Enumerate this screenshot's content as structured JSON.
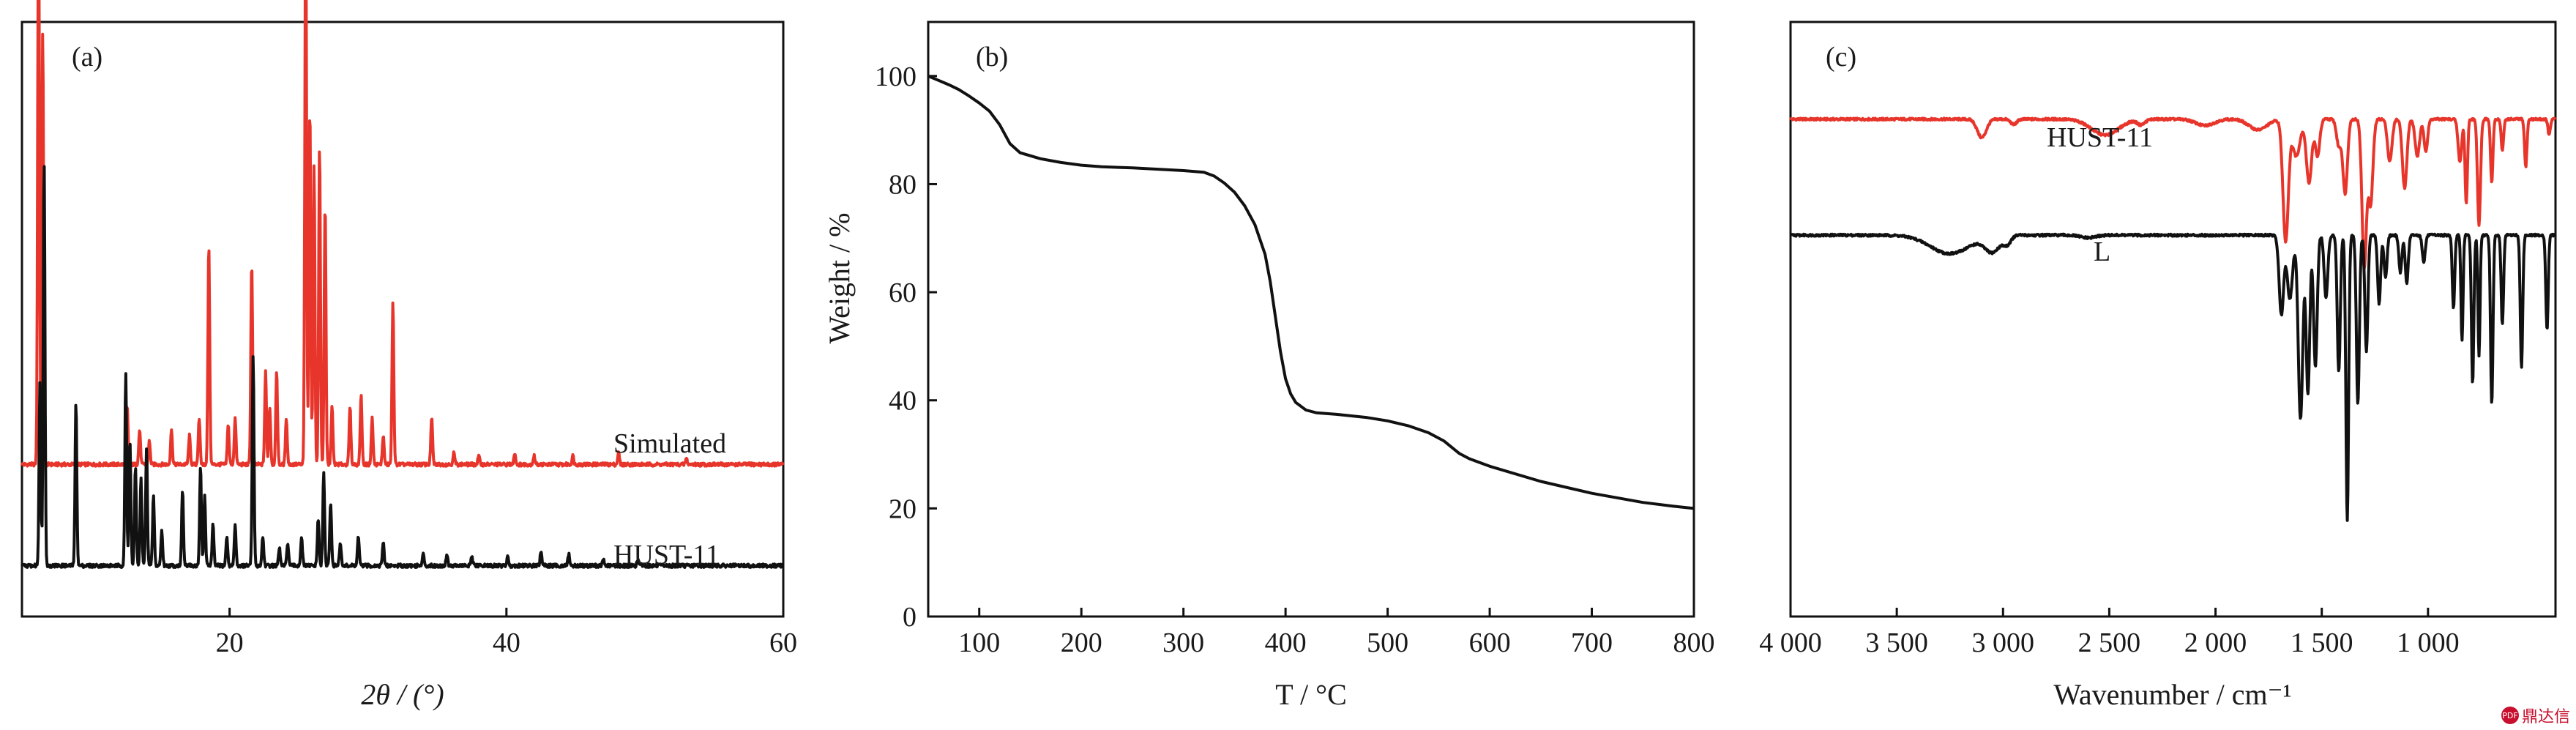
{
  "chart_data": [
    {
      "panel": "(a)",
      "type": "line",
      "xlabel": "2θ / (°)",
      "xlim": [
        5,
        60
      ],
      "xticks": [
        20,
        40,
        60
      ],
      "ylim": [
        0,
        1
      ],
      "series": [
        {
          "name": "Simulated",
          "color": "#e8352b",
          "baseline": 0.235,
          "peaks": [
            [
              6.2,
              1.0
            ],
            [
              6.5,
              0.75
            ],
            [
              12.6,
              0.1
            ],
            [
              13.5,
              0.06
            ],
            [
              14.2,
              0.04
            ],
            [
              15.8,
              0.06
            ],
            [
              17.1,
              0.05
            ],
            [
              17.8,
              0.08
            ],
            [
              18.5,
              0.38
            ],
            [
              19.9,
              0.07
            ],
            [
              20.4,
              0.08
            ],
            [
              21.6,
              0.35
            ],
            [
              22.6,
              0.16
            ],
            [
              22.9,
              0.1
            ],
            [
              23.4,
              0.16
            ],
            [
              24.1,
              0.08
            ],
            [
              25.5,
              0.97
            ],
            [
              25.8,
              0.62
            ],
            [
              26.1,
              0.52
            ],
            [
              26.5,
              0.55
            ],
            [
              26.9,
              0.45
            ],
            [
              27.4,
              0.1
            ],
            [
              28.7,
              0.1
            ],
            [
              29.5,
              0.12
            ],
            [
              30.3,
              0.08
            ],
            [
              31.1,
              0.05
            ],
            [
              31.8,
              0.28
            ],
            [
              34.6,
              0.08
            ],
            [
              36.2,
              0.02
            ],
            [
              38.0,
              0.015
            ],
            [
              40.6,
              0.02
            ],
            [
              42.0,
              0.015
            ],
            [
              44.8,
              0.015
            ],
            [
              48.1,
              0.02
            ],
            [
              53.0,
              0.01
            ]
          ]
        },
        {
          "name": "HUST-11",
          "color": "#111111",
          "baseline": 0.06,
          "peaks": [
            [
              6.3,
              0.32
            ],
            [
              6.6,
              0.7
            ],
            [
              8.9,
              0.28
            ],
            [
              12.5,
              0.33
            ],
            [
              12.8,
              0.22
            ],
            [
              13.2,
              0.17
            ],
            [
              13.6,
              0.15
            ],
            [
              14.0,
              0.2
            ],
            [
              14.5,
              0.12
            ],
            [
              15.1,
              0.06
            ],
            [
              16.6,
              0.13
            ],
            [
              17.9,
              0.17
            ],
            [
              18.2,
              0.12
            ],
            [
              18.8,
              0.07
            ],
            [
              19.8,
              0.05
            ],
            [
              20.4,
              0.07
            ],
            [
              21.7,
              0.36
            ],
            [
              22.4,
              0.05
            ],
            [
              23.6,
              0.03
            ],
            [
              24.2,
              0.04
            ],
            [
              25.2,
              0.05
            ],
            [
              26.4,
              0.08
            ],
            [
              26.8,
              0.16
            ],
            [
              27.3,
              0.11
            ],
            [
              28.0,
              0.04
            ],
            [
              29.3,
              0.05
            ],
            [
              31.1,
              0.04
            ],
            [
              34.0,
              0.02
            ],
            [
              35.7,
              0.02
            ],
            [
              37.5,
              0.015
            ],
            [
              40.1,
              0.015
            ],
            [
              42.5,
              0.025
            ],
            [
              44.5,
              0.02
            ],
            [
              47.0,
              0.01
            ],
            [
              49.5,
              0.01
            ]
          ]
        }
      ]
    },
    {
      "panel": "(b)",
      "type": "line",
      "xlabel": "T / °C",
      "ylabel": "Weight / %",
      "xlim": [
        50,
        800
      ],
      "ylim": [
        0,
        110
      ],
      "xticks": [
        100,
        200,
        300,
        400,
        500,
        600,
        700,
        800
      ],
      "yticks": [
        0,
        20,
        40,
        60,
        80,
        100
      ],
      "series": [
        {
          "name": "",
          "color": "#111111",
          "x": [
            50,
            60,
            70,
            80,
            90,
            100,
            110,
            120,
            130,
            140,
            160,
            180,
            200,
            220,
            250,
            280,
            300,
            320,
            330,
            340,
            350,
            360,
            370,
            380,
            385,
            390,
            395,
            400,
            405,
            410,
            420,
            430,
            450,
            480,
            500,
            520,
            540,
            555,
            570,
            580,
            600,
            650,
            700,
            750,
            780,
            800
          ],
          "y": [
            100,
            99.2,
            98.4,
            97.5,
            96.3,
            95,
            93.5,
            91,
            87.5,
            85.8,
            84.7,
            84,
            83.5,
            83.2,
            83,
            82.7,
            82.5,
            82.2,
            81.5,
            80.2,
            78.5,
            76,
            72.5,
            67,
            62,
            55.5,
            49,
            44,
            41.2,
            39.6,
            38.2,
            37.7,
            37.4,
            36.8,
            36.2,
            35.3,
            34,
            32.5,
            30.2,
            29.2,
            27.8,
            25,
            22.8,
            21.1,
            20.4,
            20
          ]
        }
      ]
    },
    {
      "panel": "(c)",
      "type": "line",
      "xlabel": "Wavenumber / cm⁻¹",
      "xlim": [
        4000,
        400
      ],
      "xticks": [
        4000,
        3500,
        3000,
        2500,
        2000,
        1500,
        1000
      ],
      "xtick_labels": [
        "4 000",
        "3 500",
        "3 000",
        "2 500",
        "2 000",
        "1 500",
        "1 000"
      ],
      "ylim": [
        0,
        1
      ],
      "series": [
        {
          "name": "HUST-11",
          "color": "#e8352b",
          "baseline": 0.885,
          "bands": [
            [
              3100,
              0.035,
              30
            ],
            [
              2950,
              0.01,
              20
            ],
            [
              2520,
              0.03,
              90
            ],
            [
              2350,
              0.01,
              25
            ],
            [
              2050,
              0.012,
              60
            ],
            [
              1800,
              0.02,
              60
            ],
            [
              1670,
              0.23,
              18
            ],
            [
              1620,
              0.07,
              25
            ],
            [
              1560,
              0.12,
              18
            ],
            [
              1520,
              0.07,
              15
            ],
            [
              1420,
              0.05,
              15
            ],
            [
              1390,
              0.14,
              15
            ],
            [
              1300,
              0.28,
              15
            ],
            [
              1270,
              0.16,
              15
            ],
            [
              1180,
              0.08,
              15
            ],
            [
              1110,
              0.13,
              15
            ],
            [
              1050,
              0.07,
              15
            ],
            [
              1010,
              0.06,
              12
            ],
            [
              850,
              0.08,
              12
            ],
            [
              820,
              0.16,
              8
            ],
            [
              760,
              0.2,
              10
            ],
            [
              700,
              0.12,
              8
            ],
            [
              650,
              0.06,
              8
            ],
            [
              540,
              0.09,
              8
            ],
            [
              430,
              0.03,
              8
            ]
          ]
        },
        {
          "name": "L",
          "color": "#111111",
          "baseline": 0.665,
          "bands": [
            [
              3250,
              0.035,
              130
            ],
            [
              3050,
              0.03,
              50
            ],
            [
              2980,
              0.015,
              25
            ],
            [
              2600,
              0.005,
              50
            ],
            [
              1690,
              0.15,
              15
            ],
            [
              1650,
              0.12,
              18
            ],
            [
              1600,
              0.35,
              15
            ],
            [
              1565,
              0.3,
              12
            ],
            [
              1530,
              0.25,
              12
            ],
            [
              1480,
              0.12,
              12
            ],
            [
              1420,
              0.26,
              10
            ],
            [
              1380,
              0.54,
              9
            ],
            [
              1330,
              0.32,
              10
            ],
            [
              1290,
              0.22,
              10
            ],
            [
              1230,
              0.13,
              10
            ],
            [
              1200,
              0.08,
              10
            ],
            [
              1130,
              0.07,
              10
            ],
            [
              1100,
              0.09,
              10
            ],
            [
              1020,
              0.05,
              10
            ],
            [
              880,
              0.14,
              8
            ],
            [
              840,
              0.2,
              7
            ],
            [
              790,
              0.28,
              8
            ],
            [
              760,
              0.23,
              7
            ],
            [
              700,
              0.32,
              8
            ],
            [
              650,
              0.17,
              8
            ],
            [
              560,
              0.25,
              8
            ],
            [
              440,
              0.18,
              8
            ]
          ]
        }
      ]
    }
  ],
  "watermark": {
    "badge": "PDF",
    "text": "鼎达信"
  }
}
